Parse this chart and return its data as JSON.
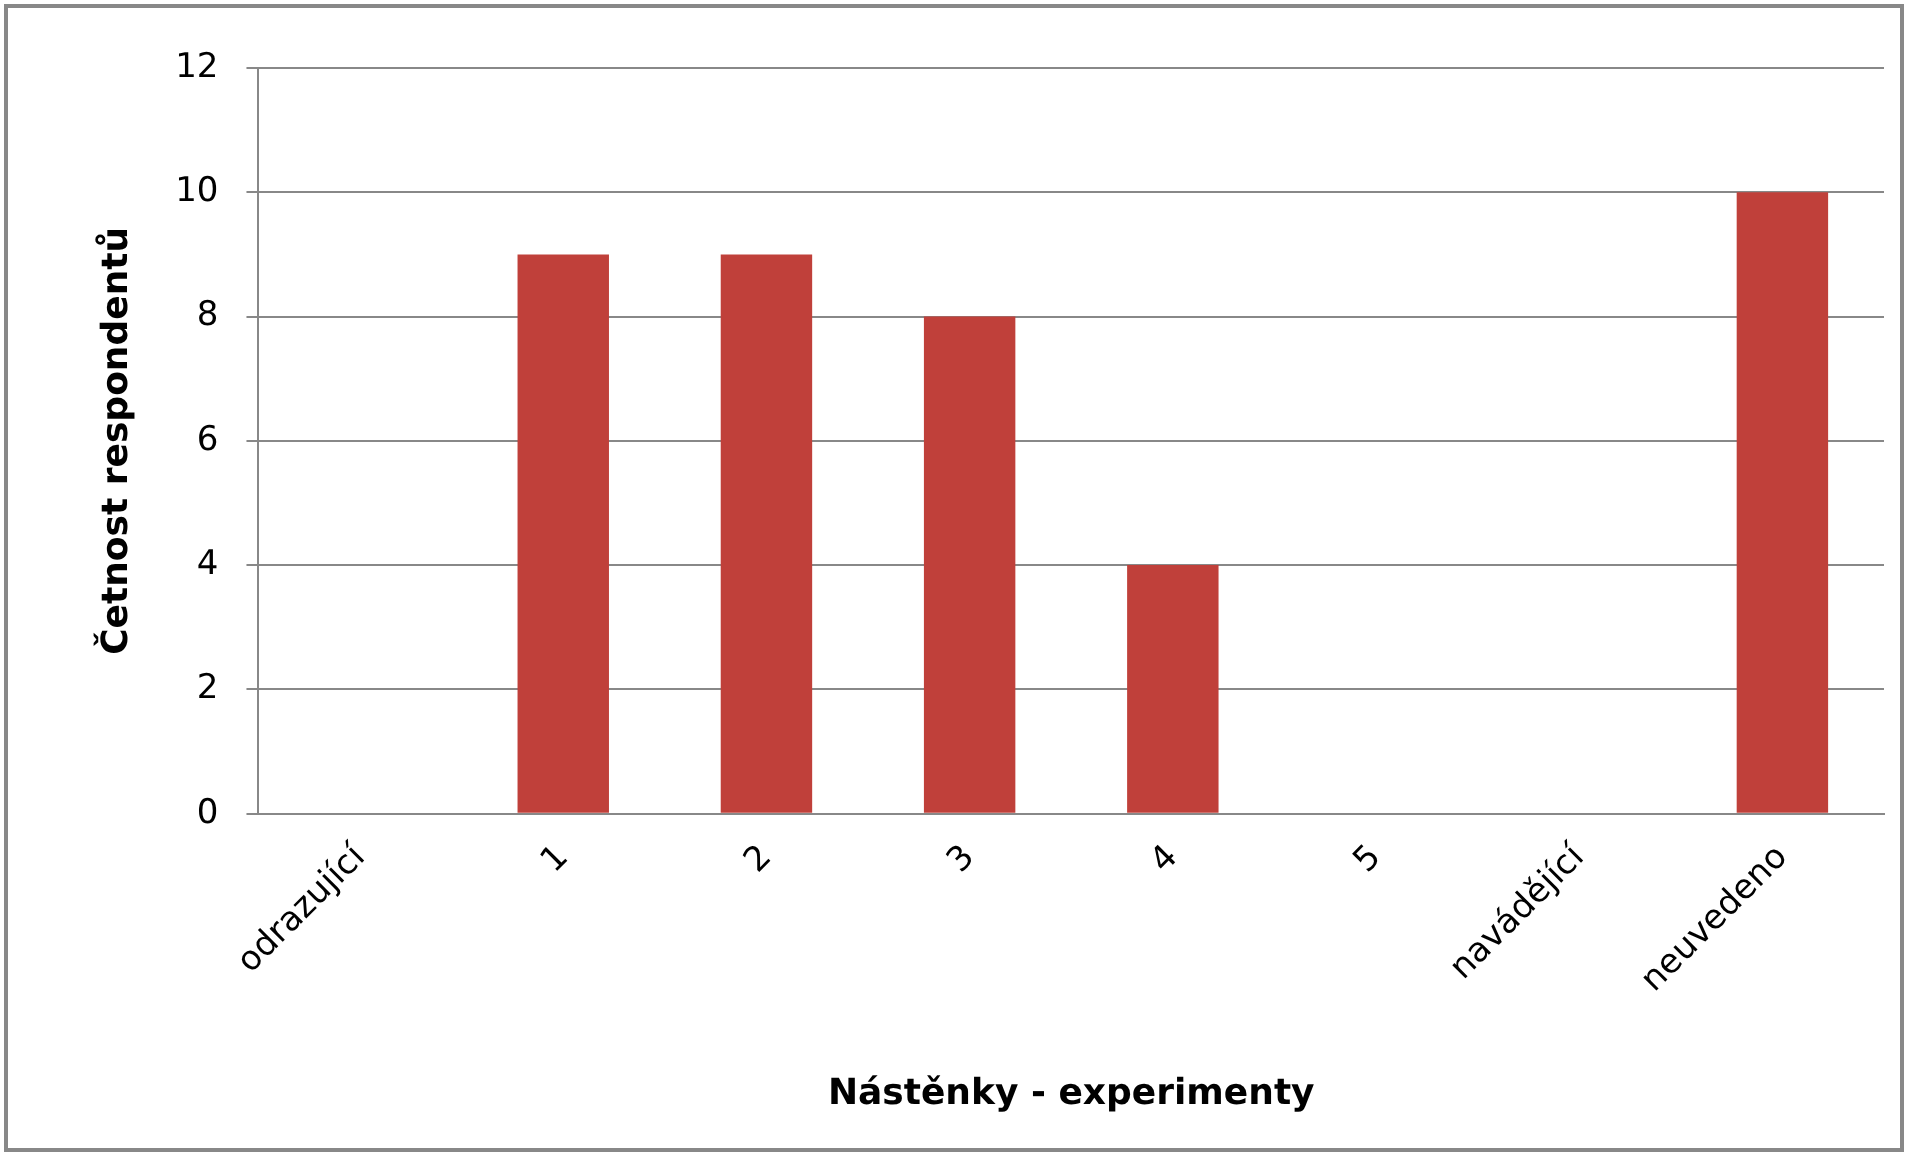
{
  "chart_data": {
    "type": "bar",
    "xlabel": "Nástěnky - experimenty",
    "ylabel": "Četnost respondentů",
    "categories": [
      "odrazující",
      "1",
      "2",
      "3",
      "4",
      "5",
      "navádějící",
      "neuvedeno"
    ],
    "values": [
      0,
      9,
      9,
      8,
      4,
      0,
      0,
      10
    ],
    "color": "#c0403a",
    "ylim": [
      0,
      12
    ],
    "yticks": [
      0,
      2,
      4,
      6,
      8,
      10,
      12
    ],
    "grid": "y",
    "legend": false
  }
}
